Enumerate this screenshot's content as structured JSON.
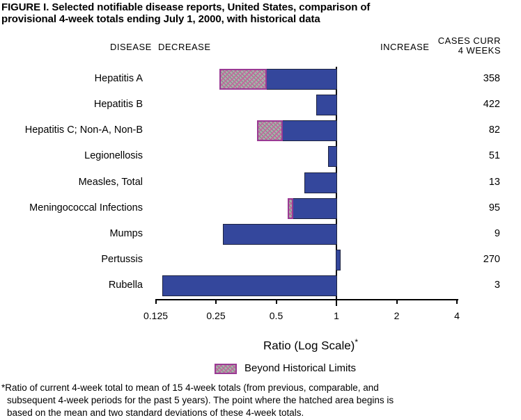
{
  "title": {
    "line1": "FIGURE I. Selected notifiable disease reports, United States, comparison of",
    "line2": "provisional 4-week totals ending July 1, 2000, with historical data"
  },
  "headers": {
    "disease": "DISEASE",
    "decrease": "DECREASE",
    "increase": "INCREASE",
    "cases_line1": "CASES CURR",
    "cases_line2": "4 WEEKS"
  },
  "chart_data": {
    "type": "bar",
    "orientation": "horizontal",
    "x_scale": "log2",
    "baseline": 1,
    "xlabel": "Ratio (Log Scale)",
    "xlabel_superscript": "*",
    "x_tick_values": [
      0.125,
      0.25,
      0.5,
      1,
      2,
      4
    ],
    "x_tick_labels": [
      "0.125",
      "0.25",
      "0.5",
      "1",
      "2",
      "4"
    ],
    "xlim": [
      0.125,
      4
    ],
    "legend_position": "bottom",
    "rows": [
      {
        "disease": "Hepatitis A",
        "cases": "358",
        "ratio": 0.26,
        "hatch_end": 0.45
      },
      {
        "disease": "Hepatitis B",
        "cases": "422",
        "ratio": 0.79
      },
      {
        "disease": "Hepatitis C; Non-A, Non-B",
        "cases": "82",
        "ratio": 0.4,
        "hatch_end": 0.54
      },
      {
        "disease": "Legionellosis",
        "cases": "51",
        "ratio": 0.91
      },
      {
        "disease": "Measles, Total",
        "cases": "13",
        "ratio": 0.69
      },
      {
        "disease": "Meningococcal Infections",
        "cases": "95",
        "ratio": 0.57,
        "hatch_end": 0.61
      },
      {
        "disease": "Mumps",
        "cases": "9",
        "ratio": 0.27
      },
      {
        "disease": "Pertussis",
        "cases": "270",
        "ratio": 1.04
      },
      {
        "disease": "Rubella",
        "cases": "3",
        "ratio": 0.135
      }
    ]
  },
  "legend": {
    "label": "Beyond Historical Limits"
  },
  "footnote": {
    "lines": [
      "*Ratio of current 4-week total to mean of 15 4-week totals (from previous, comparable, and",
      "subsequent 4-week periods for the past 5 years). The point where the hatched area begins is",
      "based on the mean and two standard deviations of these 4-week totals."
    ]
  },
  "colors": {
    "bar": "#34479C",
    "hatch_bg": "#ABABAB",
    "hatch_stripe": "#C9619E",
    "hatch_border": "#9A3A94",
    "axis": "#000000"
  }
}
